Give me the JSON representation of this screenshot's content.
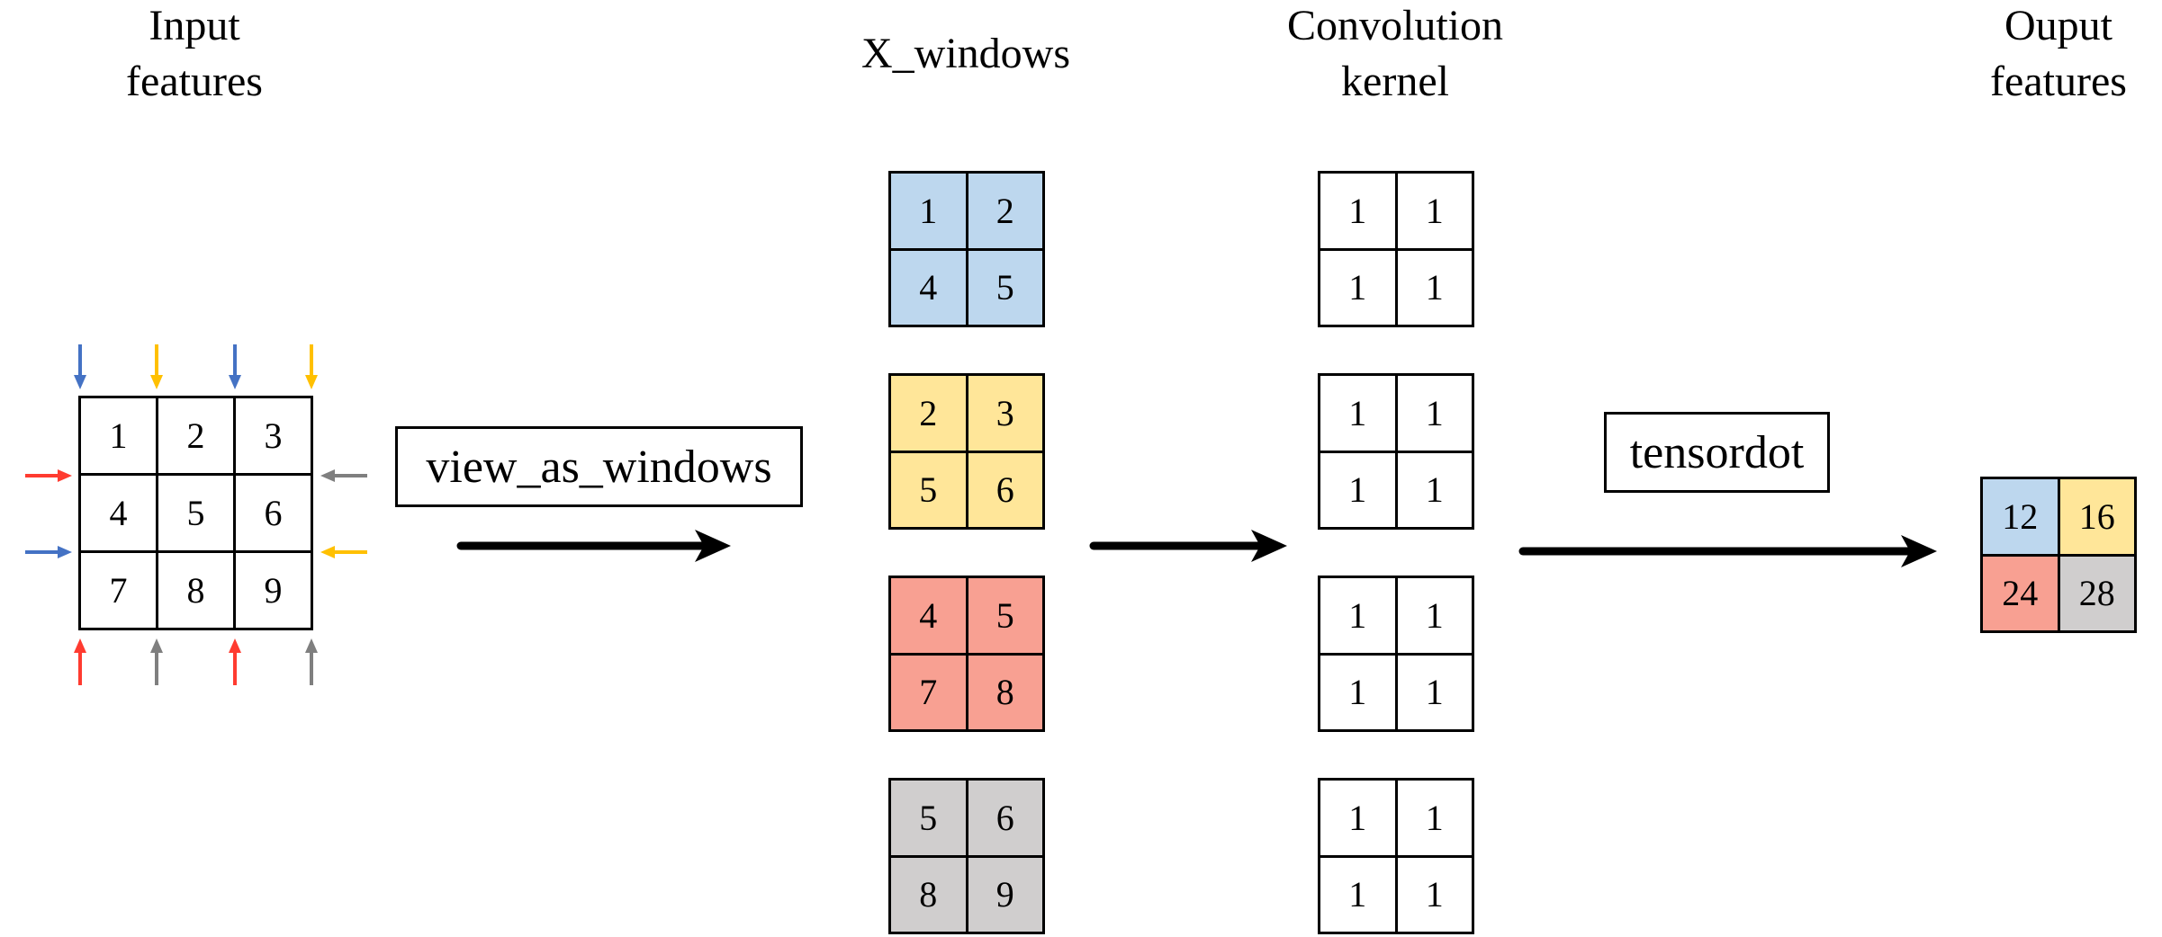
{
  "headings": {
    "input": [
      "Input",
      "features"
    ],
    "windows": [
      "X_windows"
    ],
    "kernel": [
      "Convolution",
      "kernel"
    ],
    "output": [
      "Ouput",
      "features"
    ]
  },
  "input_grid": {
    "values": [
      "1",
      "2",
      "3",
      "4",
      "5",
      "6",
      "7",
      "8",
      "9"
    ]
  },
  "windows": [
    {
      "values": [
        "1",
        "2",
        "4",
        "5"
      ],
      "color": "#bdd7ee"
    },
    {
      "values": [
        "2",
        "3",
        "5",
        "6"
      ],
      "color": "#ffe699"
    },
    {
      "values": [
        "4",
        "5",
        "7",
        "8"
      ],
      "color": "#f8a092"
    },
    {
      "values": [
        "5",
        "6",
        "8",
        "9"
      ],
      "color": "#d0cece"
    }
  ],
  "kernels": [
    {
      "values": [
        "1",
        "1",
        "1",
        "1"
      ]
    },
    {
      "values": [
        "1",
        "1",
        "1",
        "1"
      ]
    },
    {
      "values": [
        "1",
        "1",
        "1",
        "1"
      ]
    },
    {
      "values": [
        "1",
        "1",
        "1",
        "1"
      ]
    }
  ],
  "output_grid": {
    "values": [
      "12",
      "16",
      "24",
      "28"
    ],
    "colors": [
      "#bdd7ee",
      "#ffe699",
      "#f8a092",
      "#d0cece"
    ]
  },
  "operations": {
    "view_as_windows": "view_as_windows",
    "tensordot": "tensordot"
  },
  "colors": {
    "blue": "#4472c4",
    "yellow": "#ffc000",
    "red": "#ff3b30",
    "gray": "#7f7f7f",
    "arrow": "#000000"
  }
}
